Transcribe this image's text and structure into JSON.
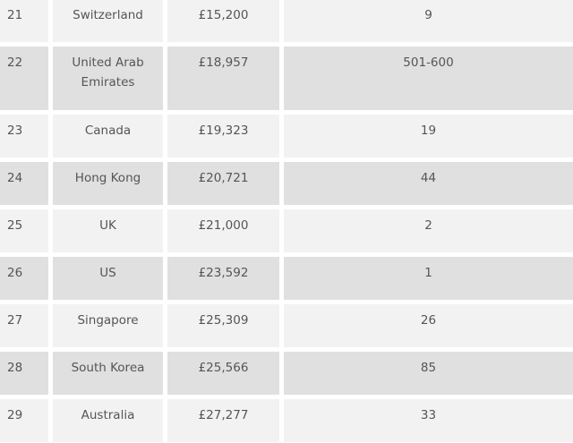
{
  "colors": {
    "row_light": "#f2f2f2",
    "row_dark": "#e0e0e0",
    "text": "#555555"
  },
  "rows": [
    {
      "rank": "21",
      "country": "Switzerland",
      "cost": "£15,200",
      "ranking": "9"
    },
    {
      "rank": "22",
      "country": "United Arab Emirates",
      "cost": "£18,957",
      "ranking": "501-600"
    },
    {
      "rank": "23",
      "country": "Canada",
      "cost": "£19,323",
      "ranking": "19"
    },
    {
      "rank": "24",
      "country": "Hong Kong",
      "cost": "£20,721",
      "ranking": "44"
    },
    {
      "rank": "25",
      "country": "UK",
      "cost": "£21,000",
      "ranking": "2"
    },
    {
      "rank": "26",
      "country": "US",
      "cost": "£23,592",
      "ranking": "1"
    },
    {
      "rank": "27",
      "country": "Singapore",
      "cost": "£25,309",
      "ranking": "26"
    },
    {
      "rank": "28",
      "country": "South Korea",
      "cost": "£25,566",
      "ranking": "85"
    },
    {
      "rank": "29",
      "country": "Australia",
      "cost": "£27,277",
      "ranking": "33"
    }
  ]
}
